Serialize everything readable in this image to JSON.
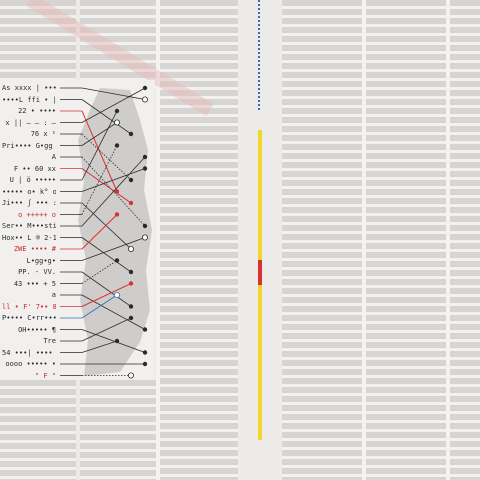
{
  "legend": {
    "rows": [
      {
        "label": "As xxxx | ••••",
        "accent": "dark"
      },
      {
        "label": "••••L ffi • ||",
        "accent": "dark"
      },
      {
        "label": "22 • ••••",
        "accent": "dark"
      },
      {
        "label": "x || — — : —",
        "accent": "dark"
      },
      {
        "label": "76 x ¹",
        "accent": "dark"
      },
      {
        "label": "Pri•••• G•gg •",
        "accent": "dark"
      },
      {
        "label": "A",
        "accent": "dark"
      },
      {
        "label": "F •• 60 xx",
        "accent": "dark"
      },
      {
        "label": "U | ö •••••",
        "accent": "dark"
      },
      {
        "label": "••••• o• k° oo",
        "accent": "dark"
      },
      {
        "label": "Ji••• ʃ ••• :",
        "accent": "dark"
      },
      {
        "label": "o +++++ o",
        "accent": "red"
      },
      {
        "label": "Ser•• M•••sti",
        "accent": "dark"
      },
      {
        "label": "Hox•• L ® 2-1•",
        "accent": "dark"
      },
      {
        "label": "ZWE •••• #",
        "accent": "red"
      },
      {
        "label": "L•gg•g•",
        "accent": "dark"
      },
      {
        "label": "PP. - VV.",
        "accent": "dark"
      },
      {
        "label": "43 ••• + 5",
        "accent": "dark"
      },
      {
        "label": "a",
        "accent": "dark"
      },
      {
        "label": "ll • F' 7•• 89,8",
        "accent": "red"
      },
      {
        "label": "P•••• C•rr••••",
        "accent": "dark"
      },
      {
        "label": "OH••••• ¶",
        "accent": "dark"
      },
      {
        "label": "Tre",
        "accent": "dark"
      },
      {
        "label": "54 •••| •••• 8",
        "accent": "dark"
      },
      {
        "label": "oooo ••••• •",
        "accent": "dark"
      },
      {
        "label": "\" F \"",
        "accent": "red"
      }
    ]
  },
  "colors": {
    "background": "#ecebea",
    "stripe": "#d6d5d4",
    "red": "#d93232",
    "blue": "#3a6fb5",
    "yellow": "#f0d72a",
    "ink": "#2b2b2b",
    "map_gray": "#c3c2c0"
  },
  "connectors": [
    {
      "from": 0,
      "to": 1,
      "color": "dark",
      "style": "solid"
    },
    {
      "from": 1,
      "to": 4,
      "color": "dark",
      "style": "solid"
    },
    {
      "from": 2,
      "to": 9,
      "color": "red",
      "style": "solid"
    },
    {
      "from": 3,
      "to": 0,
      "color": "dark",
      "style": "solid"
    },
    {
      "from": 4,
      "to": 8,
      "color": "dark",
      "style": "dotted"
    },
    {
      "from": 5,
      "to": 3,
      "color": "dark",
      "style": "solid"
    },
    {
      "from": 6,
      "to": 12,
      "color": "dark",
      "style": "dotted"
    },
    {
      "from": 7,
      "to": 10,
      "color": "red",
      "style": "solid"
    },
    {
      "from": 8,
      "to": 2,
      "color": "dark",
      "style": "solid"
    },
    {
      "from": 9,
      "to": 7,
      "color": "dark",
      "style": "solid"
    },
    {
      "from": 10,
      "to": 14,
      "color": "dark",
      "style": "solid"
    },
    {
      "from": 11,
      "to": 5,
      "color": "dark",
      "style": "dotted"
    },
    {
      "from": 12,
      "to": 6,
      "color": "dark",
      "style": "solid"
    },
    {
      "from": 13,
      "to": 16,
      "color": "dark",
      "style": "solid"
    },
    {
      "from": 14,
      "to": 11,
      "color": "red",
      "style": "solid"
    },
    {
      "from": 15,
      "to": 13,
      "color": "dark",
      "style": "solid"
    },
    {
      "from": 16,
      "to": 19,
      "color": "dark",
      "style": "solid"
    },
    {
      "from": 17,
      "to": 15,
      "color": "dark",
      "style": "dotted"
    },
    {
      "from": 18,
      "to": 21,
      "color": "dark",
      "style": "solid"
    },
    {
      "from": 19,
      "to": 17,
      "color": "red",
      "style": "solid"
    },
    {
      "from": 20,
      "to": 18,
      "color": "blue",
      "style": "solid"
    },
    {
      "from": 21,
      "to": 23,
      "color": "dark",
      "style": "solid"
    },
    {
      "from": 22,
      "to": 20,
      "color": "dark",
      "style": "solid"
    },
    {
      "from": 23,
      "to": 22,
      "color": "dark",
      "style": "solid"
    },
    {
      "from": 24,
      "to": 24,
      "color": "dark",
      "style": "solid"
    },
    {
      "from": 25,
      "to": 25,
      "color": "dark",
      "style": "dotted"
    }
  ],
  "color_bar": [
    {
      "color": "yellow",
      "share": 0.42
    },
    {
      "color": "red",
      "share": 0.08
    },
    {
      "color": "yellow",
      "share": 0.5
    }
  ]
}
